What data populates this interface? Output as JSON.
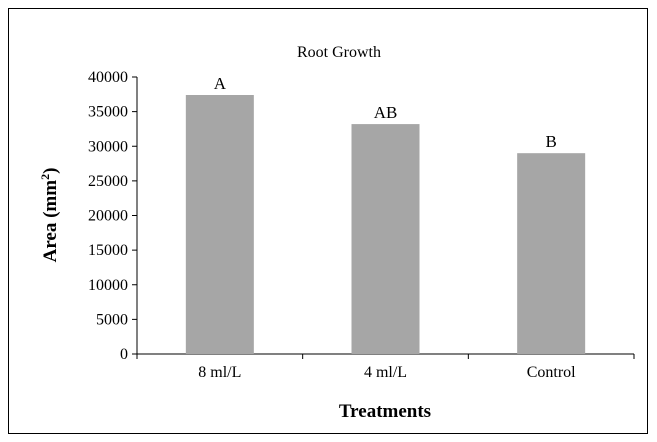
{
  "chart_data": {
    "type": "bar",
    "title": "Root Growth",
    "xlabel": "Treatments",
    "ylabel_main": "Area (mm",
    "ylabel_sup": "2",
    "ylabel_close": ")",
    "categories": [
      "8 ml/L",
      "4 ml/L",
      "Control"
    ],
    "values": [
      37400,
      33200,
      29000
    ],
    "bar_labels": [
      "A",
      "AB",
      "B"
    ],
    "ylim": [
      0,
      40000
    ],
    "yticks": [
      0,
      5000,
      10000,
      15000,
      20000,
      25000,
      30000,
      35000,
      40000
    ],
    "ytick_labels": [
      "0",
      "5000",
      "10000",
      "15000",
      "20000",
      "25000",
      "30000",
      "35000",
      "40000"
    ],
    "grid": false,
    "bar_color": "#a6a6a6"
  }
}
